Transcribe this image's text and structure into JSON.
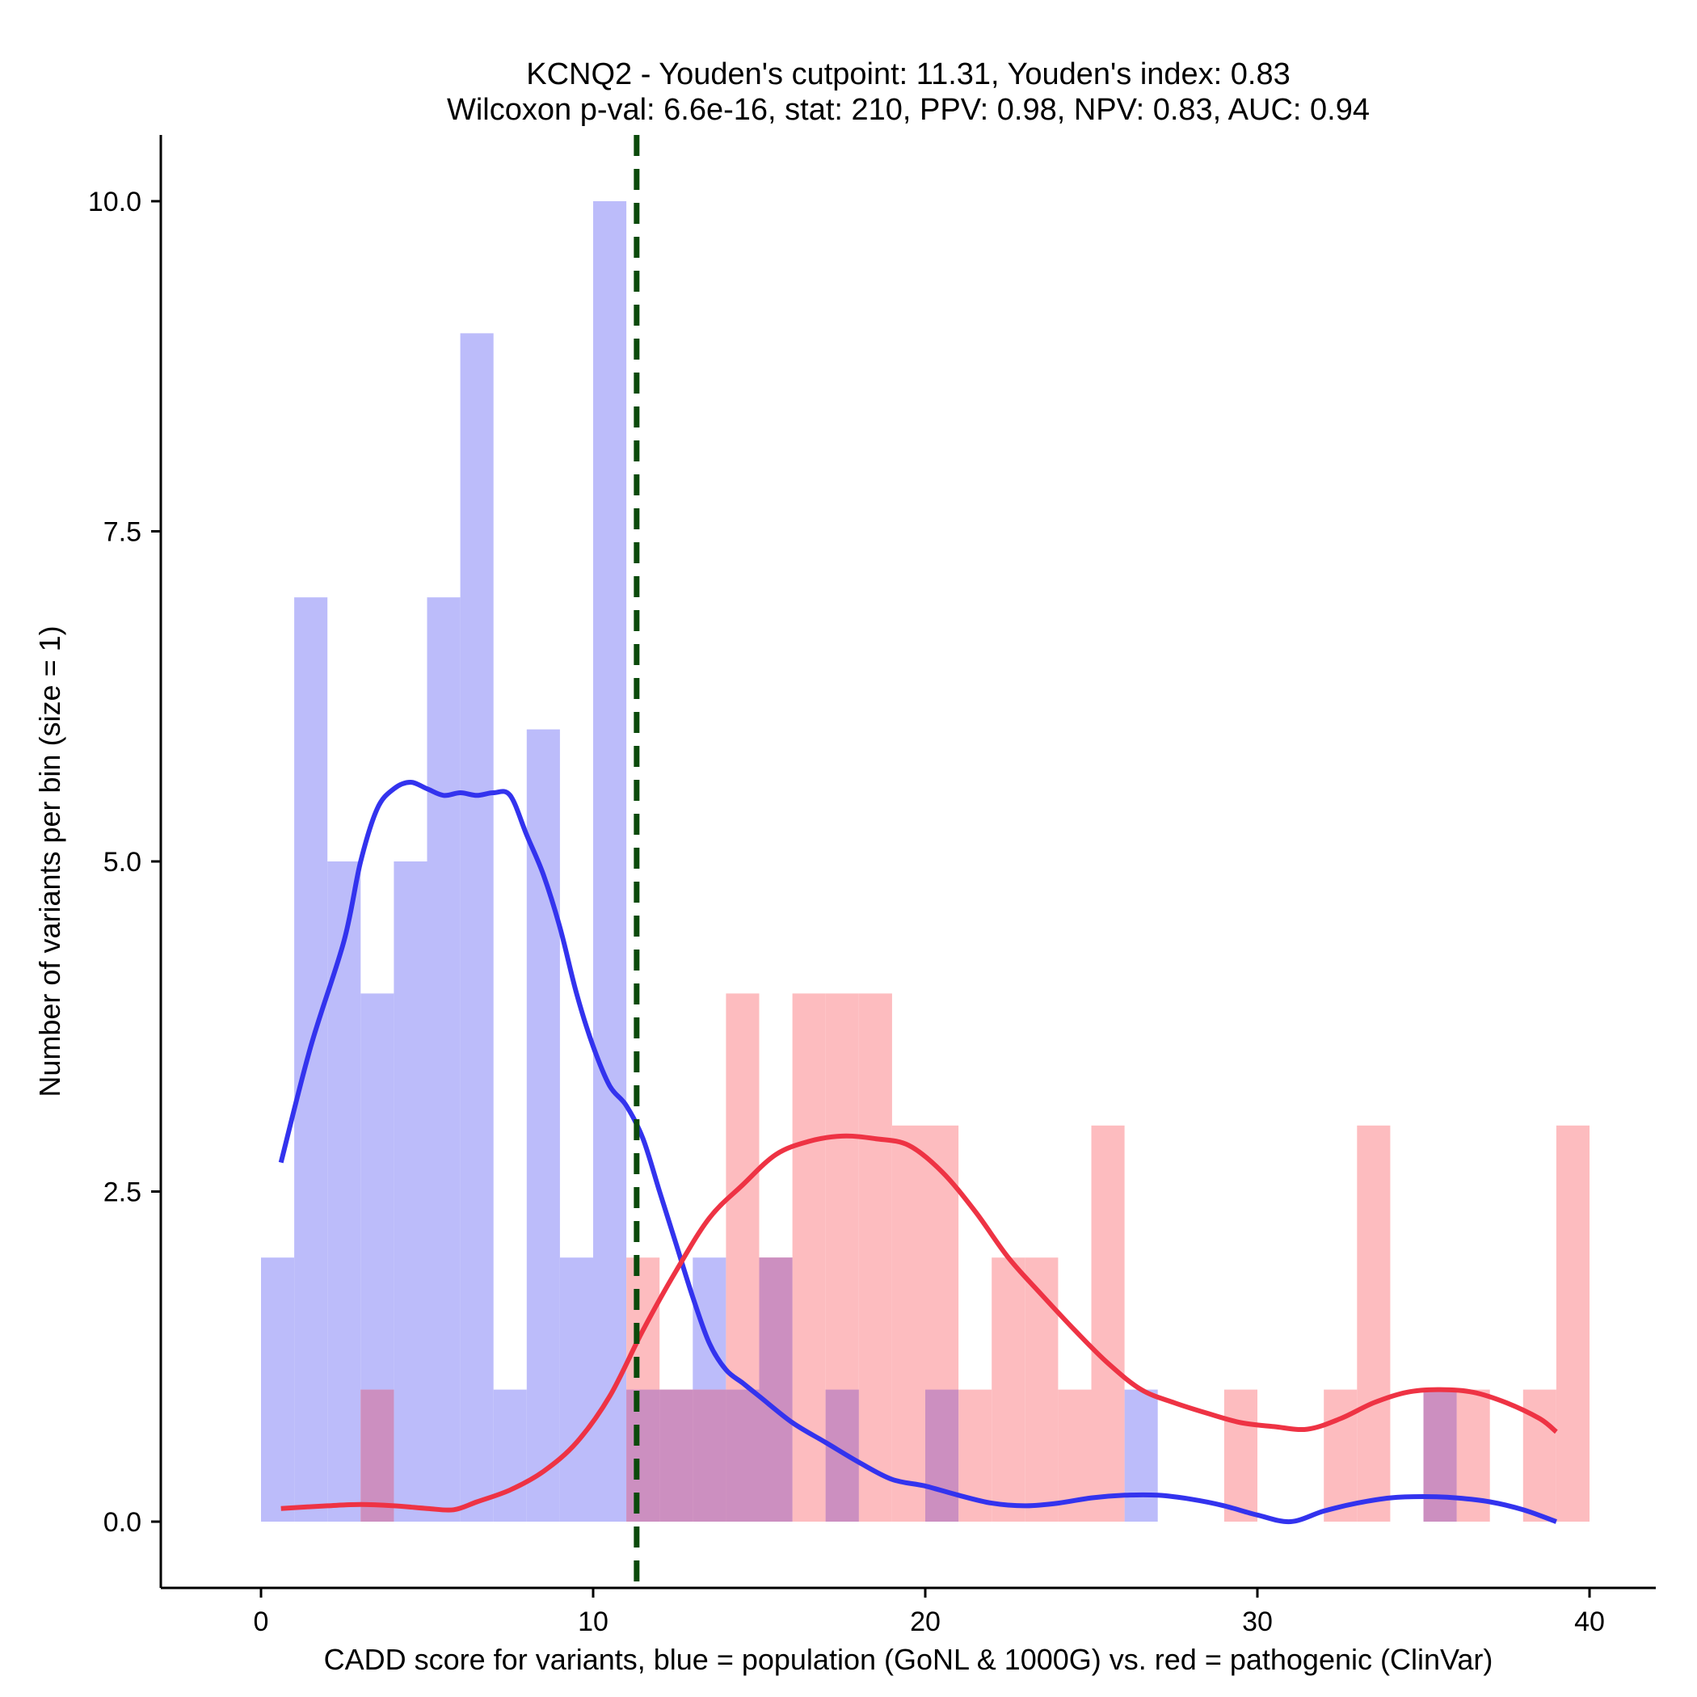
{
  "chart_data": {
    "type": "histogram-density",
    "title_line1": "KCNQ2 - Youden's cutpoint: 11.31, Youden's index: 0.83",
    "title_line2": "Wilcoxon p-val: 6.6e-16, stat: 210, PPV: 0.98, NPV: 0.83, AUC: 0.94",
    "xlabel": "CADD score for variants, blue = population (GoNL & 1000G) vs. red = pathogenic (ClinVar)",
    "ylabel": "Number of variants per bin (size = 1)",
    "xlim": [
      -3,
      42
    ],
    "ylim": [
      -0.5,
      10.5
    ],
    "xticks": [
      0,
      10,
      20,
      30,
      40
    ],
    "xtick_labels": [
      "0",
      "10",
      "20",
      "30",
      "40"
    ],
    "yticks": [
      0,
      2.5,
      5,
      7.5,
      10
    ],
    "ytick_labels": [
      "0.0",
      "2.5",
      "5.0",
      "7.5",
      "10.0"
    ],
    "cutpoint": 11.31,
    "bin_width": 1,
    "colors": {
      "population_bar": "#bcbcfa",
      "pathogenic_bar": "#fdbcbf",
      "overlap_bar": "#cc8fc0",
      "population_line": "#3333ee",
      "pathogenic_line": "#ee3344",
      "cutpoint_line": "#0b4a0b"
    },
    "series": [
      {
        "name": "population (GoNL & 1000G)",
        "bin_starts": [
          0,
          1,
          2,
          3,
          4,
          5,
          6,
          7,
          8,
          9,
          10,
          11,
          12,
          13,
          14,
          15,
          16,
          17,
          18,
          19,
          20,
          21,
          22,
          23,
          24,
          25,
          26,
          27,
          28,
          29,
          30,
          31,
          32,
          33,
          34,
          35,
          36,
          37,
          38,
          39
        ],
        "counts": [
          2,
          7,
          5,
          4,
          5,
          7,
          9,
          1,
          6,
          2,
          10,
          1,
          1,
          2,
          1,
          2,
          0,
          1,
          0,
          0,
          1,
          0,
          0,
          0,
          0,
          0,
          1,
          0,
          0,
          0,
          0,
          0,
          0,
          0,
          0,
          1,
          0,
          0,
          0,
          0
        ]
      },
      {
        "name": "pathogenic (ClinVar)",
        "bin_starts": [
          0,
          1,
          2,
          3,
          4,
          5,
          6,
          7,
          8,
          9,
          10,
          11,
          12,
          13,
          14,
          15,
          16,
          17,
          18,
          19,
          20,
          21,
          22,
          23,
          24,
          25,
          26,
          27,
          28,
          29,
          30,
          31,
          32,
          33,
          34,
          35,
          36,
          37,
          38,
          39
        ],
        "counts": [
          0,
          0,
          0,
          1,
          0,
          0,
          0,
          0,
          0,
          0,
          0,
          2,
          1,
          1,
          4,
          2,
          4,
          4,
          4,
          3,
          3,
          1,
          2,
          2,
          1,
          3,
          0,
          0,
          0,
          1,
          0,
          0,
          1,
          3,
          0,
          1,
          1,
          0,
          1,
          3
        ]
      }
    ],
    "density_population": {
      "x": [
        0.6,
        1.5,
        2.5,
        3.0,
        3.5,
        4.0,
        4.5,
        5.0,
        5.5,
        6.0,
        6.5,
        7.0,
        7.5,
        8.0,
        8.5,
        9.0,
        9.5,
        10.0,
        10.5,
        11.0,
        11.5,
        12.0,
        12.5,
        13.0,
        13.5,
        14.0,
        14.5,
        15.0,
        16.0,
        17.0,
        18.0,
        19.0,
        20.0,
        21.0,
        22.0,
        23.0,
        24.0,
        25.0,
        26.0,
        27.0,
        28.0,
        29.0,
        30.0,
        31.0,
        32.0,
        33.0,
        34.0,
        35.0,
        36.0,
        37.0,
        38.0,
        39.0
      ],
      "y": [
        2.72,
        3.6,
        4.4,
        5.0,
        5.4,
        5.55,
        5.6,
        5.55,
        5.5,
        5.52,
        5.5,
        5.52,
        5.5,
        5.2,
        4.9,
        4.5,
        4.0,
        3.6,
        3.3,
        3.15,
        2.9,
        2.5,
        2.1,
        1.7,
        1.35,
        1.15,
        1.05,
        0.95,
        0.75,
        0.6,
        0.45,
        0.32,
        0.27,
        0.2,
        0.14,
        0.12,
        0.14,
        0.18,
        0.2,
        0.2,
        0.17,
        0.12,
        0.05,
        0.0,
        0.08,
        0.14,
        0.18,
        0.19,
        0.18,
        0.15,
        0.09,
        0.0
      ]
    },
    "density_pathogenic": {
      "x": [
        0.6,
        2.0,
        3.0,
        4.0,
        5.0,
        5.8,
        6.5,
        7.5,
        8.5,
        9.5,
        10.5,
        11.5,
        12.5,
        13.5,
        14.5,
        15.5,
        16.5,
        17.5,
        18.5,
        19.5,
        20.5,
        21.5,
        22.5,
        23.5,
        24.5,
        25.5,
        26.5,
        27.5,
        28.5,
        29.5,
        30.5,
        31.5,
        32.5,
        33.5,
        34.5,
        35.5,
        36.5,
        37.5,
        38.5,
        39.0
      ],
      "y": [
        0.1,
        0.12,
        0.13,
        0.12,
        0.1,
        0.09,
        0.15,
        0.24,
        0.38,
        0.6,
        0.95,
        1.45,
        1.9,
        2.3,
        2.55,
        2.78,
        2.88,
        2.92,
        2.9,
        2.85,
        2.65,
        2.35,
        2.0,
        1.72,
        1.45,
        1.2,
        1.0,
        0.9,
        0.82,
        0.75,
        0.72,
        0.7,
        0.78,
        0.9,
        0.98,
        1.0,
        0.98,
        0.9,
        0.78,
        0.68
      ]
    }
  }
}
